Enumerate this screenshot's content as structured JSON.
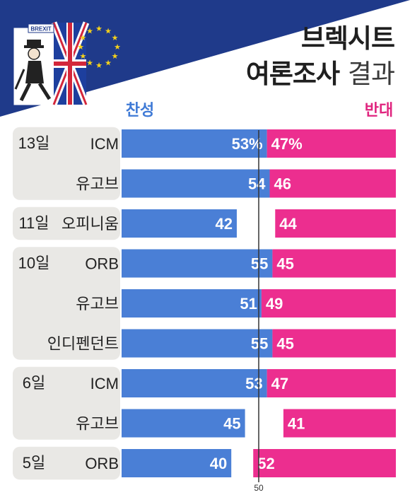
{
  "header": {
    "badge_text": "BREXIT",
    "title_line1": "브렉시트",
    "title_line2_bold": "여론조사",
    "title_line2_light": "결과"
  },
  "colors": {
    "support": "#4a7fd6",
    "oppose": "#ec2e8f",
    "support_text": "#3f7ad6",
    "oppose_text": "#e0257f",
    "group_bg": "#e9e8e5",
    "banner_blue": "#1f3a8a"
  },
  "chart_data": {
    "type": "bar",
    "subtype": "diverging-stacked-horizontal",
    "series": [
      {
        "name": "찬성"
      },
      {
        "name": "반대"
      }
    ],
    "groups": [
      {
        "date": "13일",
        "rows": [
          {
            "pollster": "ICM",
            "support": 53,
            "oppose": 47,
            "support_label": "53%",
            "oppose_label": "47%"
          },
          {
            "pollster": "유고브",
            "support": 54,
            "oppose": 46,
            "support_label": "54",
            "oppose_label": "46"
          }
        ]
      },
      {
        "date": "11일",
        "rows": [
          {
            "pollster": "오피니움",
            "support": 42,
            "oppose": 44,
            "support_label": "42",
            "oppose_label": "44"
          }
        ]
      },
      {
        "date": "10일",
        "rows": [
          {
            "pollster": "ORB",
            "support": 55,
            "oppose": 45,
            "support_label": "55",
            "oppose_label": "45"
          },
          {
            "pollster": "유고브",
            "support": 51,
            "oppose": 49,
            "support_label": "51",
            "oppose_label": "49"
          },
          {
            "pollster": "인디펜던트",
            "support": 55,
            "oppose": 45,
            "support_label": "55",
            "oppose_label": "45"
          }
        ]
      },
      {
        "date": "6일",
        "rows": [
          {
            "pollster": "ICM",
            "support": 53,
            "oppose": 47,
            "support_label": "53",
            "oppose_label": "47"
          },
          {
            "pollster": "유고브",
            "support": 45,
            "oppose": 41,
            "support_label": "45",
            "oppose_label": "41"
          }
        ]
      },
      {
        "date": "5일",
        "rows": [
          {
            "pollster": "ORB",
            "support": 40,
            "oppose": 52,
            "support_label": "40",
            "oppose_label": "52"
          }
        ]
      }
    ],
    "midline": 50,
    "midline_label": "50",
    "xlim": [
      0,
      100
    ],
    "grid": false,
    "legend": "top"
  }
}
